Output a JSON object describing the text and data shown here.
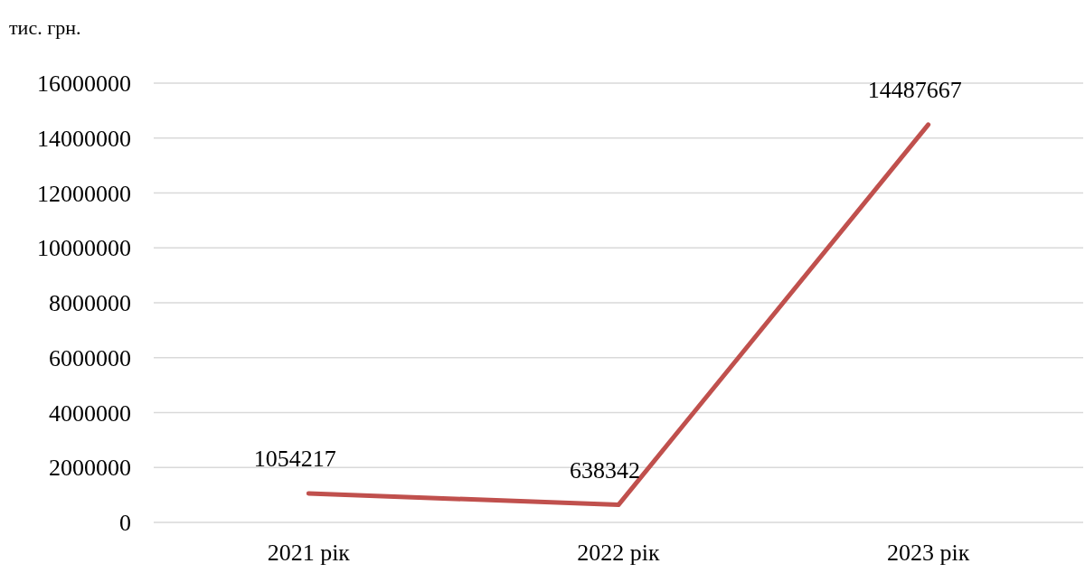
{
  "chart_data": {
    "type": "line",
    "ylabel": "тис. грн.",
    "categories": [
      "2021 рік",
      "2022 рік",
      "2023 рік"
    ],
    "series": [
      {
        "color": "#c0504d",
        "values": [
          1054217,
          638342,
          14487667
        ]
      }
    ],
    "ylim": [
      0,
      16000000
    ],
    "yticks": [
      0,
      2000000,
      4000000,
      6000000,
      8000000,
      10000000,
      12000000,
      14000000,
      16000000
    ],
    "grid": "y",
    "data_labels": true,
    "marker": "none"
  }
}
